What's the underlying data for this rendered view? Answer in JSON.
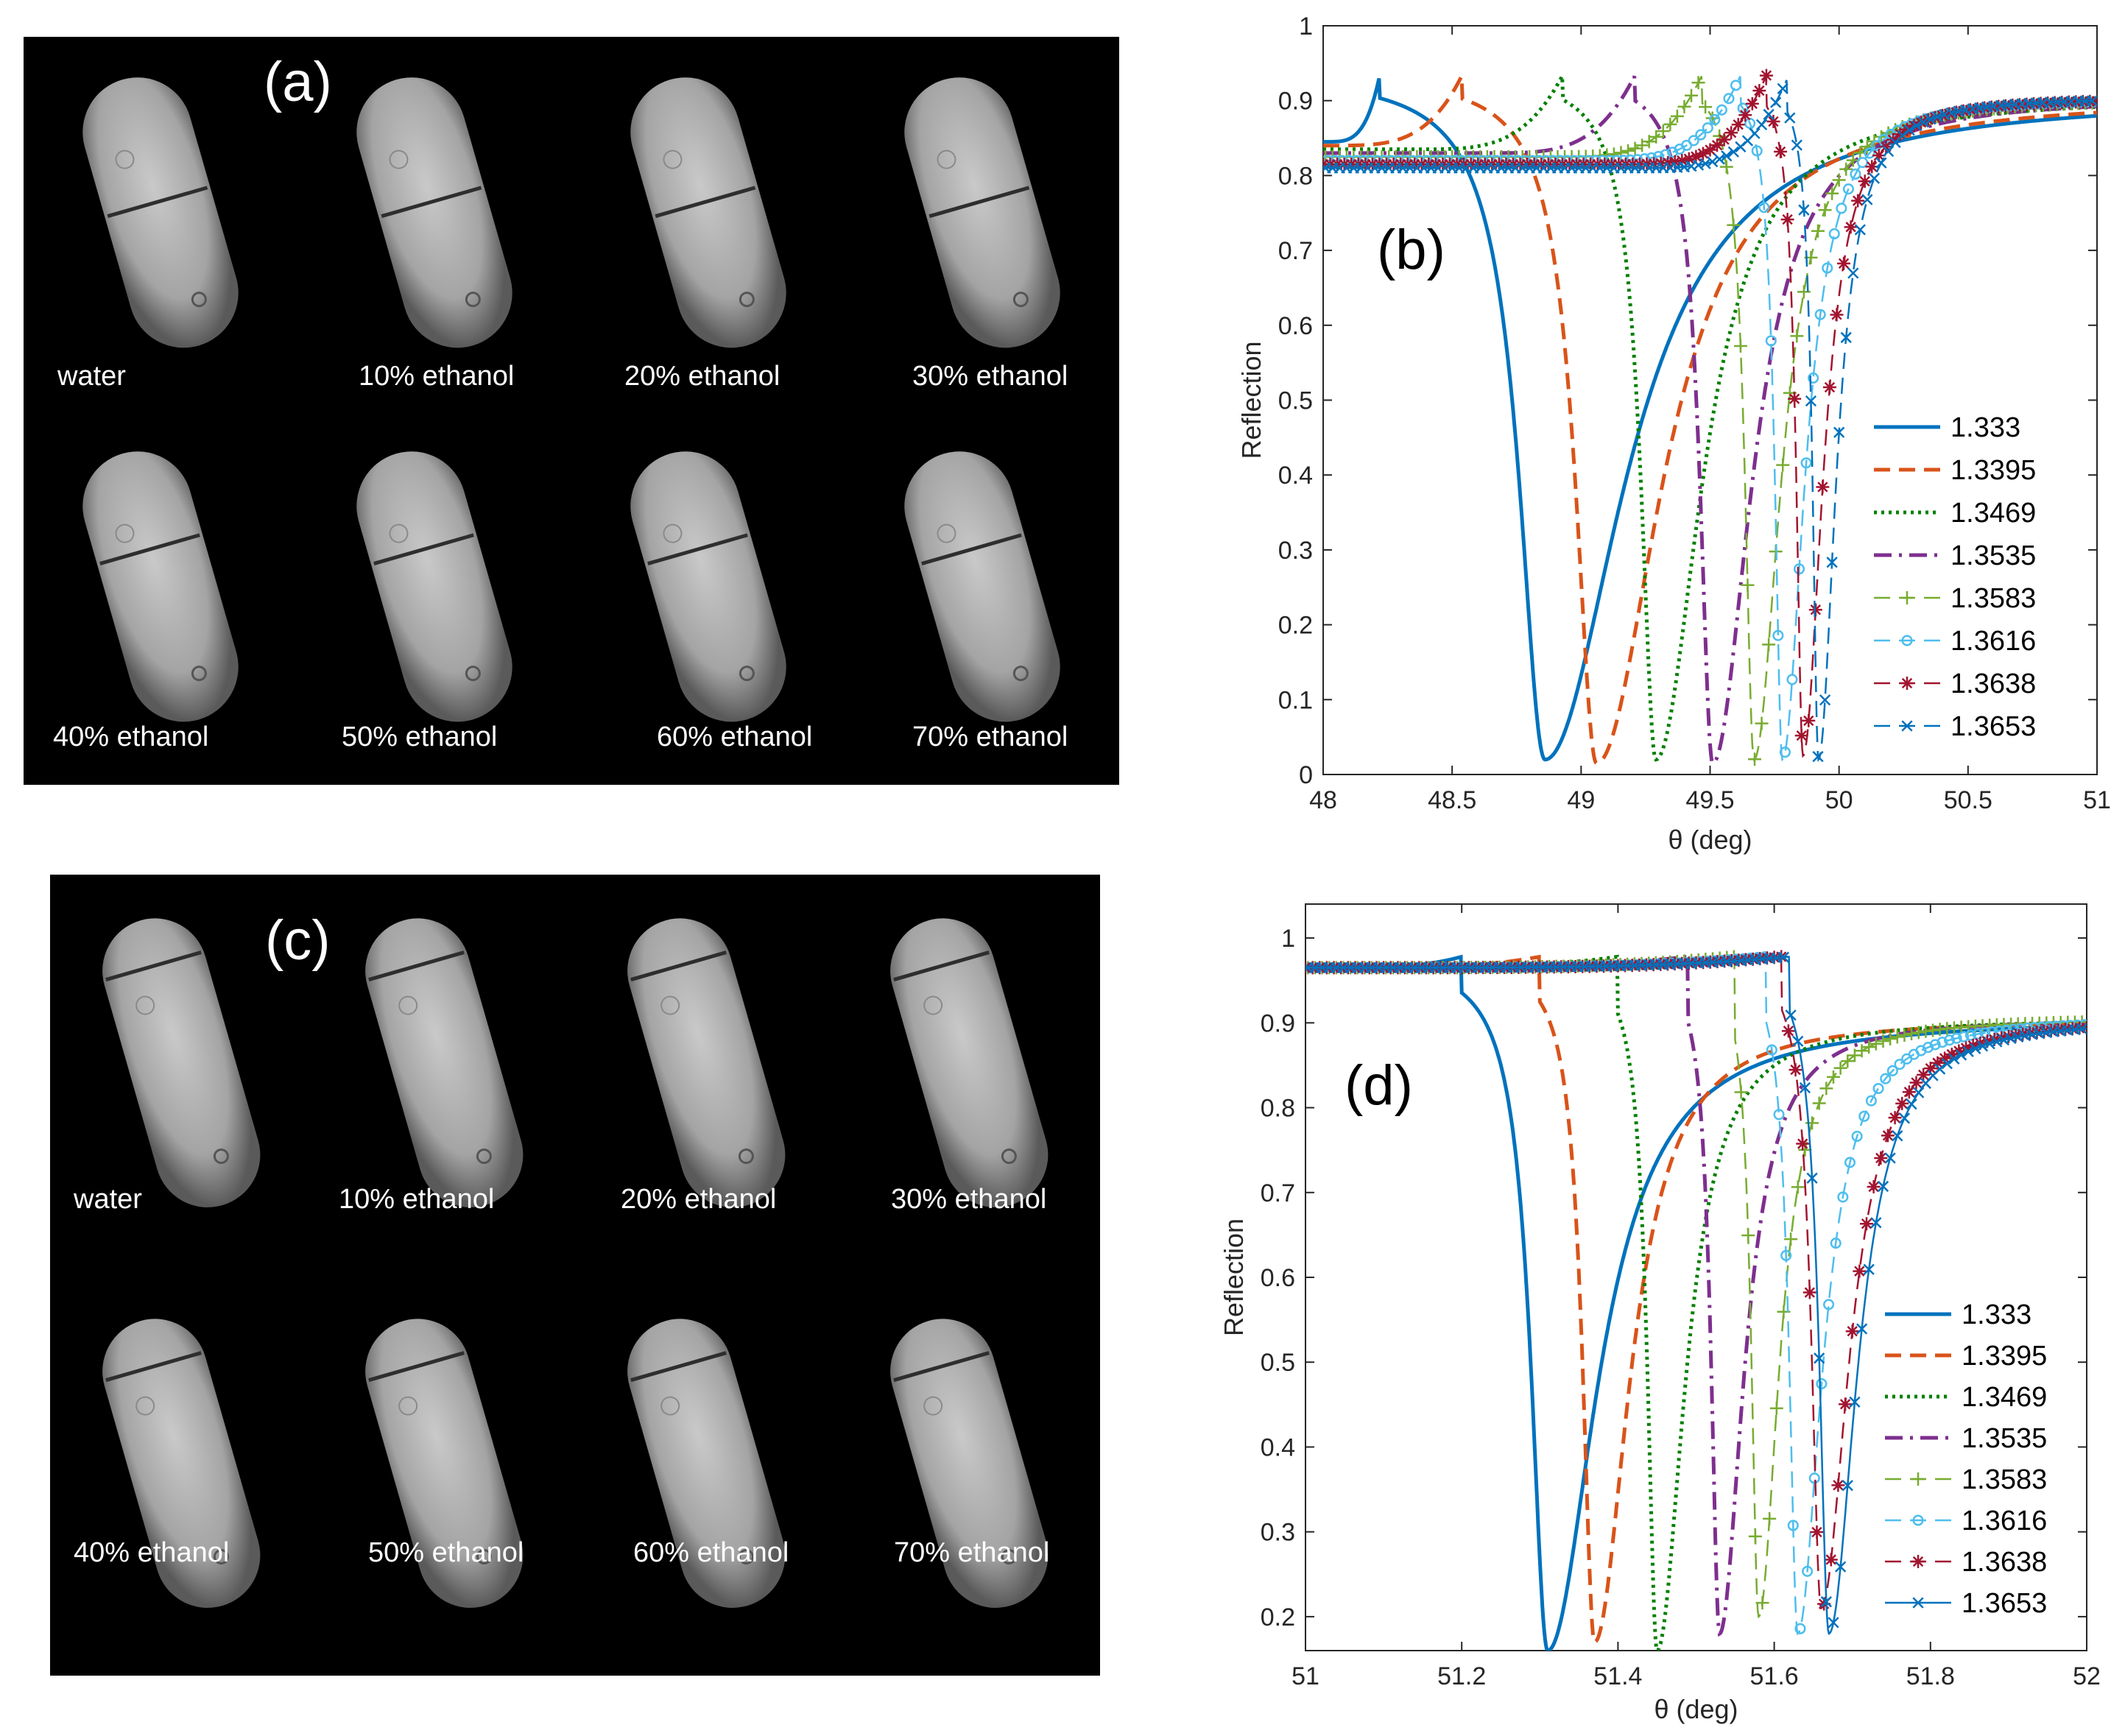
{
  "figure": {
    "image_panels": [
      {
        "letter": "(a)",
        "captions": [
          "water",
          "10% ethanol",
          "20% ethanol",
          "30% ethanol",
          "40% ethanol",
          "50% ethanol",
          "60% ethanol",
          "70% ethanol"
        ]
      },
      {
        "letter": "(c)",
        "captions": [
          "water",
          "10% ethanol",
          "20% ethanol",
          "30% ethanol",
          "40% ethanol",
          "50% ethanol",
          "60% ethanol",
          "70% ethanol"
        ]
      }
    ]
  },
  "chart_data": [
    {
      "panel_label": "(b)",
      "type": "line",
      "xlabel": "θ (deg)",
      "ylabel": "Reflection",
      "xlim": [
        48,
        51
      ],
      "ylim": [
        0,
        1
      ],
      "xticks": [
        "48",
        "48.5",
        "49",
        "49.5",
        "50",
        "50.5",
        "51"
      ],
      "yticks": [
        "0",
        "0.1",
        "0.2",
        "0.3",
        "0.4",
        "0.5",
        "0.6",
        "0.7",
        "0.8",
        "0.9",
        "1"
      ],
      "legend_position": "bottom-right",
      "series": [
        {
          "name": "1.333",
          "color": "#0072BD",
          "style": "solid",
          "marker": "none",
          "dip_angle": 48.86,
          "dip_min": 0.02,
          "pre_level": 0.845,
          "peak_angle": 48.22,
          "peak_value": 0.935
        },
        {
          "name": "1.3395",
          "color": "#D95319",
          "style": "dashed",
          "marker": "none",
          "dip_angle": 49.06,
          "dip_min": 0.015,
          "pre_level": 0.84,
          "peak_angle": 48.54,
          "peak_value": 0.935
        },
        {
          "name": "1.3469",
          "color": "#008000",
          "style": "dotted",
          "marker": "none",
          "dip_angle": 49.29,
          "dip_min": 0.02,
          "pre_level": 0.835,
          "peak_angle": 48.93,
          "peak_value": 0.935
        },
        {
          "name": "1.3535",
          "color": "#7E2F8E",
          "style": "dashdot",
          "marker": "none",
          "dip_angle": 49.51,
          "dip_min": 0.015,
          "pre_level": 0.83,
          "peak_angle": 49.21,
          "peak_value": 0.935
        },
        {
          "name": "1.3583",
          "color": "#77AC30",
          "style": "dashed",
          "marker": "plus",
          "dip_angle": 49.67,
          "dip_min": 0.02,
          "pre_level": 0.825,
          "peak_angle": 49.47,
          "peak_value": 0.935
        },
        {
          "name": "1.3616",
          "color": "#4DBEEE",
          "style": "dashed",
          "marker": "circle",
          "dip_angle": 49.78,
          "dip_min": 0.02,
          "pre_level": 0.82,
          "peak_angle": 49.62,
          "peak_value": 0.935
        },
        {
          "name": "1.3638",
          "color": "#A2142F",
          "style": "dashed",
          "marker": "star",
          "dip_angle": 49.86,
          "dip_min": 0.025,
          "pre_level": 0.815,
          "peak_angle": 49.72,
          "peak_value": 0.935
        },
        {
          "name": "1.3653",
          "color": "#0072BD",
          "style": "dashed",
          "marker": "x",
          "dip_angle": 49.92,
          "dip_min": 0.02,
          "pre_level": 0.81,
          "peak_angle": 49.8,
          "peak_value": 0.93
        }
      ]
    },
    {
      "panel_label": "(d)",
      "type": "line",
      "xlabel": "θ (deg)",
      "ylabel": "Reflection",
      "xlim": [
        51,
        52
      ],
      "ylim": [
        0.16,
        1.04
      ],
      "xticks": [
        "51",
        "51.2",
        "51.4",
        "51.6",
        "51.8",
        "52"
      ],
      "yticks": [
        "0.2",
        "0.3",
        "0.4",
        "0.5",
        "0.6",
        "0.7",
        "0.8",
        "0.9",
        "1"
      ],
      "legend_position": "bottom-right",
      "series": [
        {
          "name": "1.333",
          "color": "#0072BD",
          "style": "solid",
          "marker": "none",
          "dip_angle": 51.31,
          "dip_min": 0.16,
          "pre_level": 0.965,
          "peak_angle": 51.2,
          "peak_value": 0.978
        },
        {
          "name": "1.3395",
          "color": "#D95319",
          "style": "dashed",
          "marker": "none",
          "dip_angle": 51.37,
          "dip_min": 0.17,
          "pre_level": 0.965,
          "peak_angle": 51.3,
          "peak_value": 0.978
        },
        {
          "name": "1.3469",
          "color": "#008000",
          "style": "dotted",
          "marker": "none",
          "dip_angle": 51.45,
          "dip_min": 0.16,
          "pre_level": 0.965,
          "peak_angle": 51.4,
          "peak_value": 0.978
        },
        {
          "name": "1.3535",
          "color": "#7E2F8E",
          "style": "dashdot",
          "marker": "none",
          "dip_angle": 51.53,
          "dip_min": 0.18,
          "pre_level": 0.965,
          "peak_angle": 51.49,
          "peak_value": 0.978
        },
        {
          "name": "1.3583",
          "color": "#77AC30",
          "style": "dashed",
          "marker": "plus",
          "dip_angle": 51.58,
          "dip_min": 0.2,
          "pre_level": 0.965,
          "peak_angle": 51.55,
          "peak_value": 0.978
        },
        {
          "name": "1.3616",
          "color": "#4DBEEE",
          "style": "dashed",
          "marker": "circle",
          "dip_angle": 51.63,
          "dip_min": 0.18,
          "pre_level": 0.965,
          "peak_angle": 51.59,
          "peak_value": 0.978
        },
        {
          "name": "1.3638",
          "color": "#A2142F",
          "style": "dashed",
          "marker": "star",
          "dip_angle": 51.66,
          "dip_min": 0.21,
          "pre_level": 0.965,
          "peak_angle": 51.61,
          "peak_value": 0.978
        },
        {
          "name": "1.3653",
          "color": "#0072BD",
          "style": "solid",
          "marker": "x",
          "dip_angle": 51.67,
          "dip_min": 0.18,
          "pre_level": 0.965,
          "peak_angle": 51.62,
          "peak_value": 0.978
        }
      ]
    }
  ]
}
